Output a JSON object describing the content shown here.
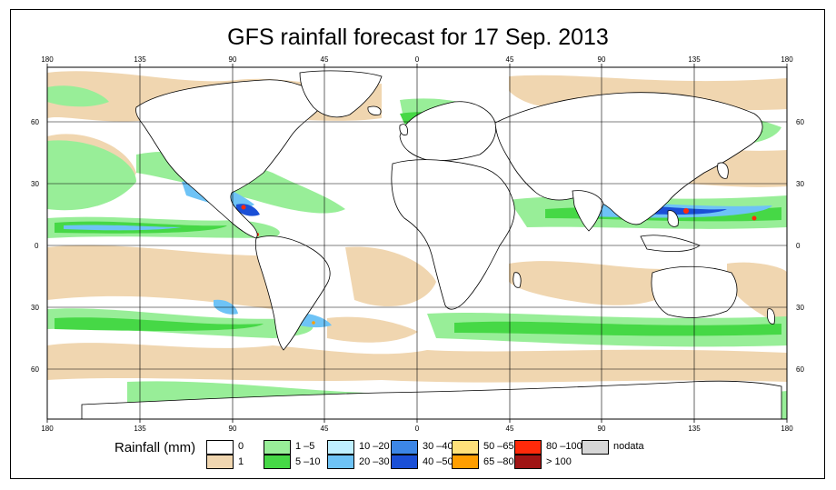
{
  "title": "GFS rainfall forecast for 17 Sep. 2013",
  "axes": {
    "lon_ticks": [
      "180",
      "135",
      "90",
      "45",
      "0",
      "45",
      "90",
      "135",
      "180"
    ],
    "lat_ticks": [
      "60",
      "30",
      "0",
      "30",
      "60"
    ]
  },
  "legend": {
    "title": "Rainfall (mm)",
    "items": [
      {
        "label": "0",
        "color": "#ffffff"
      },
      {
        "label": "1",
        "color": "#f0d6b0"
      },
      {
        "label": "1 –5",
        "color": "#98ee98"
      },
      {
        "label": "5 –10",
        "color": "#46d846"
      },
      {
        "label": "10 –20",
        "color": "#bfefff"
      },
      {
        "label": "20 –30",
        "color": "#6ec3f6"
      },
      {
        "label": "30 –40",
        "color": "#3c86e6"
      },
      {
        "label": "40 –50",
        "color": "#1a4fd6"
      },
      {
        "label": "50 –65",
        "color": "#ffe17a"
      },
      {
        "label": "65 –80",
        "color": "#ff9e00"
      },
      {
        "label": "80 –100",
        "color": "#ff2a0a"
      },
      {
        "label": "> 100",
        "color": "#a01414"
      },
      {
        "label": "nodata",
        "color": "#d6d6d6"
      }
    ]
  }
}
